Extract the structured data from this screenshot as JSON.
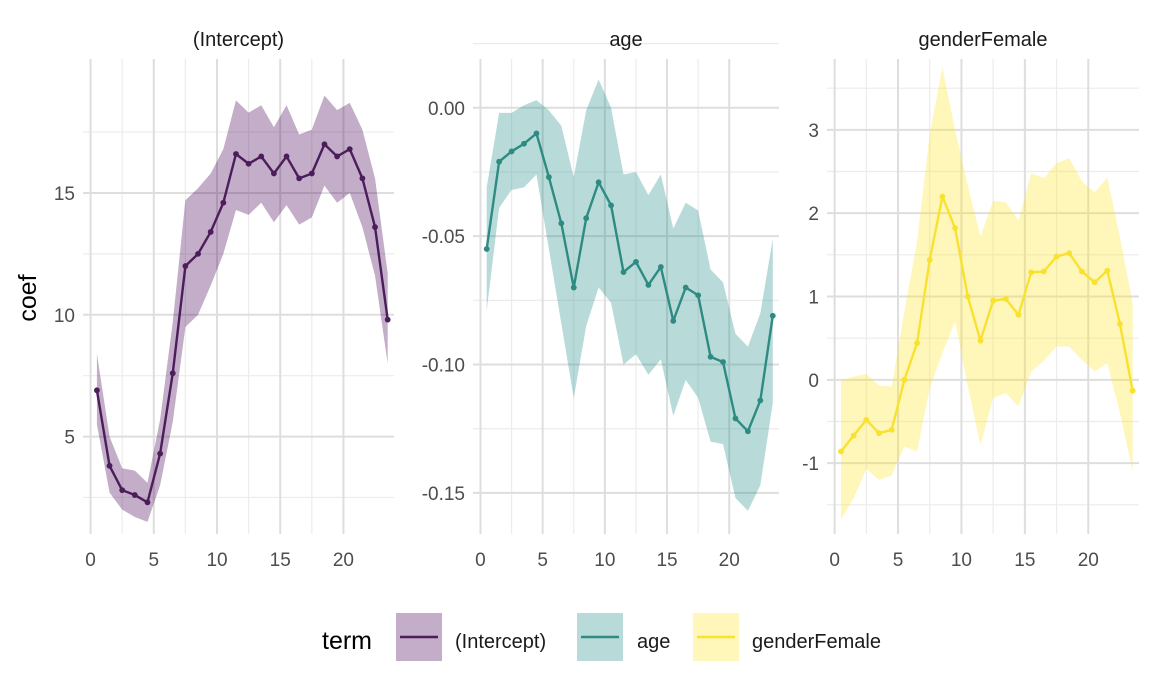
{
  "chart_data": {
    "type": "line",
    "ylabel": "coef",
    "legend": {
      "title": "term",
      "position": "bottom"
    },
    "grid": true,
    "x": [
      0.5,
      1.5,
      2.5,
      3.5,
      4.5,
      5.5,
      6.5,
      7.5,
      8.5,
      9.5,
      10.5,
      11.5,
      12.5,
      13.5,
      14.5,
      15.5,
      16.5,
      17.5,
      18.5,
      19.5,
      20.5,
      21.5,
      22.5,
      23.5
    ],
    "xlim": [
      -0.6,
      24
    ],
    "x_ticks": [
      "0",
      "5",
      "10",
      "15",
      "20"
    ],
    "x_tick_values": [
      0,
      5,
      10,
      15,
      20
    ],
    "panels": [
      {
        "strip": "(Intercept)",
        "color": "#440154",
        "line_color": "#4b1d5a",
        "ylim": [
          1.0,
          20.5
        ],
        "y_ticks": [
          "5",
          "10",
          "15"
        ],
        "y_tick_values": [
          5,
          10,
          15
        ],
        "y_minor": [
          2.5,
          7.5,
          12.5,
          17.5
        ],
        "values": [
          6.9,
          3.8,
          2.8,
          2.6,
          2.3,
          4.3,
          7.6,
          12.0,
          12.5,
          13.4,
          14.6,
          16.6,
          16.2,
          16.5,
          15.8,
          16.5,
          15.6,
          15.8,
          17.0,
          16.5,
          16.8,
          15.6,
          13.6,
          9.8
        ],
        "lower": [
          5.5,
          2.7,
          2.0,
          1.7,
          1.5,
          3.0,
          5.6,
          9.5,
          10.0,
          11.2,
          12.5,
          14.3,
          14.1,
          14.6,
          13.8,
          14.5,
          13.7,
          14.0,
          15.3,
          14.6,
          15.0,
          13.6,
          11.6,
          8.0
        ],
        "upper": [
          8.4,
          5.0,
          3.7,
          3.6,
          3.1,
          5.7,
          9.7,
          14.7,
          15.2,
          15.8,
          16.8,
          18.8,
          18.3,
          18.6,
          17.7,
          18.6,
          17.4,
          17.6,
          19.0,
          18.4,
          18.7,
          17.6,
          15.6,
          11.7
        ]
      },
      {
        "strip": "age",
        "color": "#21908c",
        "line_color": "#2e8b82",
        "ylim": [
          -0.166,
          0.019
        ],
        "y_ticks": [
          "0.00",
          "-0.05",
          "-0.10",
          "-0.15"
        ],
        "y_tick_values": [
          0.0,
          -0.05,
          -0.1,
          -0.15
        ],
        "y_minor": [
          0.025,
          -0.025,
          -0.075,
          -0.125
        ],
        "values": [
          -0.055,
          -0.021,
          -0.017,
          -0.014,
          -0.01,
          -0.027,
          -0.045,
          -0.07,
          -0.043,
          -0.029,
          -0.038,
          -0.064,
          -0.06,
          -0.069,
          -0.062,
          -0.083,
          -0.07,
          -0.073,
          -0.097,
          -0.099,
          -0.121,
          -0.126,
          -0.114,
          -0.081
        ],
        "lower": [
          -0.079,
          -0.039,
          -0.032,
          -0.031,
          -0.026,
          -0.055,
          -0.084,
          -0.113,
          -0.085,
          -0.07,
          -0.076,
          -0.1,
          -0.096,
          -0.104,
          -0.098,
          -0.12,
          -0.106,
          -0.113,
          -0.13,
          -0.131,
          -0.152,
          -0.157,
          -0.147,
          -0.115
        ],
        "upper": [
          -0.031,
          -0.002,
          -0.002,
          0.001,
          0.003,
          -0.001,
          -0.007,
          -0.027,
          -0.001,
          0.011,
          0.0,
          -0.026,
          -0.025,
          -0.034,
          -0.026,
          -0.047,
          -0.037,
          -0.04,
          -0.063,
          -0.068,
          -0.088,
          -0.093,
          -0.08,
          -0.051
        ]
      },
      {
        "strip": "genderFemale",
        "color": "#fde725",
        "line_color": "#f9e12f",
        "ylim": [
          -1.85,
          3.85
        ],
        "y_ticks": [
          "3",
          "2",
          "1",
          "0",
          "-1"
        ],
        "y_tick_values": [
          3,
          2,
          1,
          0,
          -1
        ],
        "y_minor": [
          3.5,
          2.5,
          1.5,
          0.5,
          -0.5,
          -1.5
        ],
        "values": [
          -0.86,
          -0.67,
          -0.48,
          -0.64,
          -0.6,
          0.0,
          0.44,
          1.44,
          2.2,
          1.82,
          1.0,
          0.47,
          0.95,
          0.97,
          0.78,
          1.29,
          1.3,
          1.48,
          1.52,
          1.3,
          1.17,
          1.31,
          0.67,
          -0.13
        ],
        "lower": [
          -1.68,
          -1.42,
          -1.07,
          -1.2,
          -1.15,
          -0.8,
          -0.86,
          -0.1,
          0.32,
          0.7,
          -0.08,
          -0.78,
          -0.22,
          -0.16,
          -0.32,
          0.1,
          0.23,
          0.4,
          0.4,
          0.24,
          0.1,
          0.2,
          -0.4,
          -1.1
        ],
        "upper": [
          -0.01,
          0.04,
          0.07,
          -0.07,
          -0.08,
          0.82,
          1.66,
          2.95,
          3.75,
          3.0,
          2.33,
          1.72,
          2.15,
          2.13,
          1.91,
          2.48,
          2.42,
          2.6,
          2.66,
          2.38,
          2.25,
          2.43,
          1.71,
          0.92
        ]
      }
    ]
  }
}
